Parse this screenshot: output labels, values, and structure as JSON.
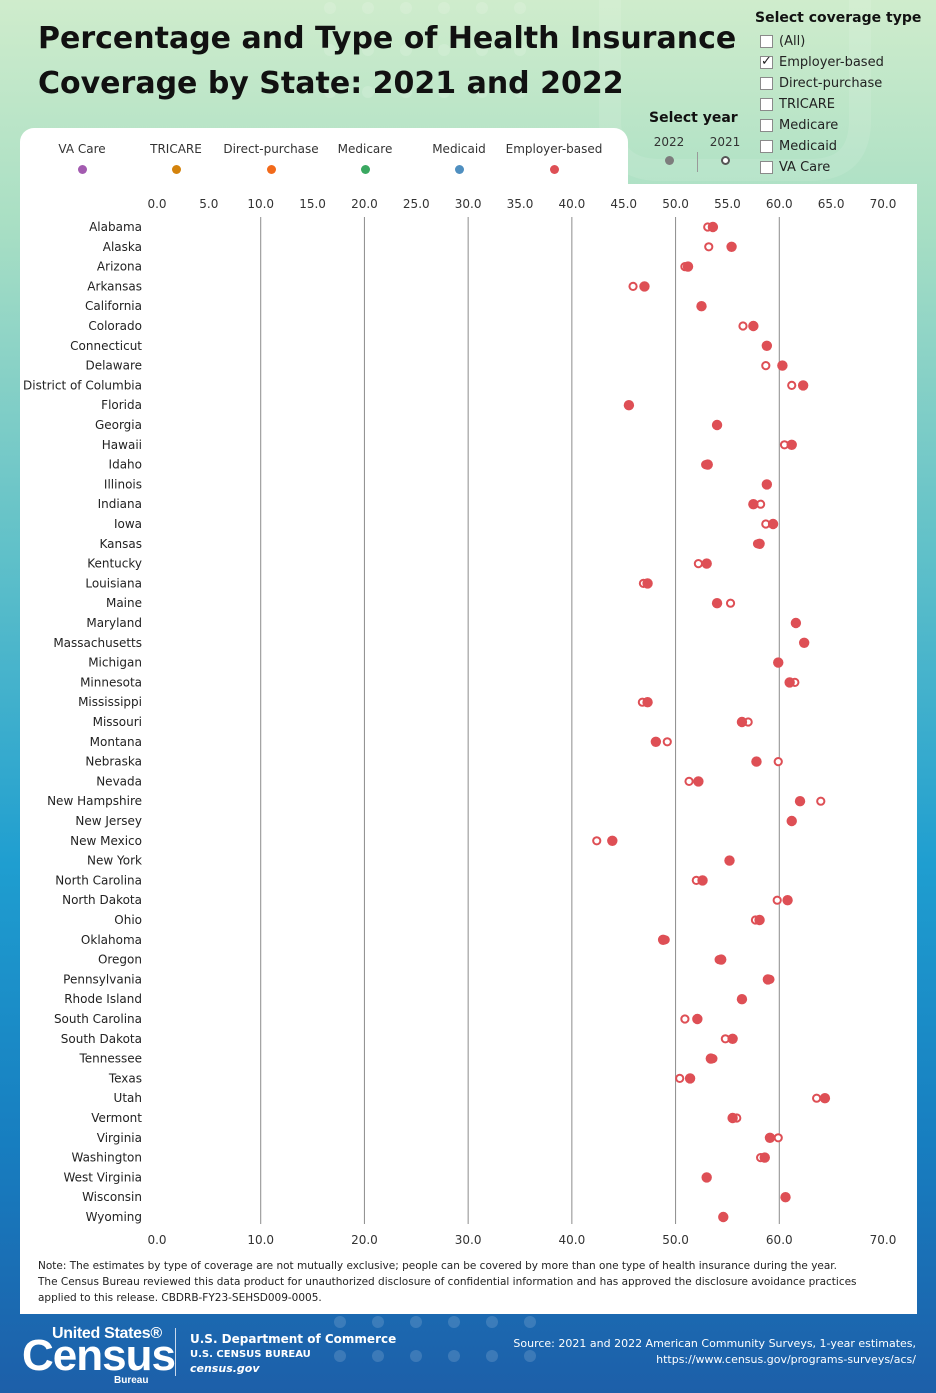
{
  "title": "Percentage and Type of Health Insurance Coverage by State: 2021 and 2022",
  "coverage_filter": {
    "header": "Select coverage type",
    "options": [
      {
        "label": "(All)",
        "checked": false
      },
      {
        "label": "Employer-based",
        "checked": true
      },
      {
        "label": "Direct-purchase",
        "checked": false
      },
      {
        "label": "TRICARE",
        "checked": false
      },
      {
        "label": "Medicare",
        "checked": false
      },
      {
        "label": "Medicaid",
        "checked": false
      },
      {
        "label": "VA Care",
        "checked": false
      }
    ]
  },
  "legend": [
    {
      "label": "VA Care",
      "color": "#a35bb0"
    },
    {
      "label": "TRICARE",
      "color": "#d4830c"
    },
    {
      "label": "Direct-purchase",
      "color": "#f26a1b"
    },
    {
      "label": "Medicare",
      "color": "#3aa861"
    },
    {
      "label": "Medicaid",
      "color": "#4f8fc0"
    },
    {
      "label": "Employer-based",
      "color": "#de4f55"
    }
  ],
  "year_filter": {
    "header": "Select year",
    "years": [
      {
        "label": "2022",
        "style": "filled"
      },
      {
        "label": "2021",
        "style": "hollow"
      }
    ]
  },
  "chart_data": {
    "type": "scatter",
    "coverage_type": "Employer-based",
    "xlim": [
      0,
      70
    ],
    "top_ticks": [
      "0.0",
      "5.0",
      "10.0",
      "15.0",
      "20.0",
      "25.0",
      "30.0",
      "35.0",
      "40.0",
      "45.0",
      "50.0",
      "55.0",
      "60.0",
      "65.0",
      "70.0"
    ],
    "bottom_ticks": [
      "0.0",
      "10.0",
      "20.0",
      "30.0",
      "40.0",
      "50.0",
      "60.0",
      "70.0"
    ],
    "gridlines": [
      10,
      20,
      30,
      40,
      50,
      60
    ],
    "series": [
      {
        "name": "2022",
        "color": "#de4f55",
        "marker": "filled"
      },
      {
        "name": "2021",
        "color": "#de4f55",
        "marker": "hollow"
      }
    ],
    "states": [
      {
        "state": "Alabama",
        "y2022": 53.6,
        "y2021": 53.1
      },
      {
        "state": "Alaska",
        "y2022": 55.4,
        "y2021": 53.2
      },
      {
        "state": "Arizona",
        "y2022": 51.2,
        "y2021": 50.9
      },
      {
        "state": "Arkansas",
        "y2022": 47.0,
        "y2021": 45.9
      },
      {
        "state": "California",
        "y2022": 52.5,
        "y2021": 52.5
      },
      {
        "state": "Colorado",
        "y2022": 57.5,
        "y2021": 56.5
      },
      {
        "state": "Connecticut",
        "y2022": 58.8,
        "y2021": 58.8
      },
      {
        "state": "Delaware",
        "y2022": 60.3,
        "y2021": 58.7
      },
      {
        "state": "District of Columbia",
        "y2022": 62.3,
        "y2021": 61.2
      },
      {
        "state": "Florida",
        "y2022": 45.5,
        "y2021": 45.5
      },
      {
        "state": "Georgia",
        "y2022": 54.0,
        "y2021": 54.0
      },
      {
        "state": "Hawaii",
        "y2022": 61.2,
        "y2021": 60.5
      },
      {
        "state": "Idaho",
        "y2022": 53.1,
        "y2021": 52.9
      },
      {
        "state": "Illinois",
        "y2022": 58.8,
        "y2021": 58.8
      },
      {
        "state": "Indiana",
        "y2022": 57.5,
        "y2021": 58.2
      },
      {
        "state": "Iowa",
        "y2022": 59.4,
        "y2021": 58.7
      },
      {
        "state": "Kansas",
        "y2022": 58.1,
        "y2021": 57.9
      },
      {
        "state": "Kentucky",
        "y2022": 53.0,
        "y2021": 52.2
      },
      {
        "state": "Louisiana",
        "y2022": 47.3,
        "y2021": 46.9
      },
      {
        "state": "Maine",
        "y2022": 54.0,
        "y2021": 55.3
      },
      {
        "state": "Maryland",
        "y2022": 61.6,
        "y2021": 61.6
      },
      {
        "state": "Massachusetts",
        "y2022": 62.4,
        "y2021": 62.4
      },
      {
        "state": "Michigan",
        "y2022": 59.9,
        "y2021": 59.9
      },
      {
        "state": "Minnesota",
        "y2022": 61.0,
        "y2021": 61.5
      },
      {
        "state": "Mississippi",
        "y2022": 47.3,
        "y2021": 46.8
      },
      {
        "state": "Missouri",
        "y2022": 56.4,
        "y2021": 57.0
      },
      {
        "state": "Montana",
        "y2022": 48.1,
        "y2021": 49.2
      },
      {
        "state": "Nebraska",
        "y2022": 57.8,
        "y2021": 59.9
      },
      {
        "state": "Nevada",
        "y2022": 52.2,
        "y2021": 51.3
      },
      {
        "state": "New Hampshire",
        "y2022": 62.0,
        "y2021": 64.0
      },
      {
        "state": "New Jersey",
        "y2022": 61.2,
        "y2021": 61.2
      },
      {
        "state": "New Mexico",
        "y2022": 43.9,
        "y2021": 42.4
      },
      {
        "state": "New York",
        "y2022": 55.2,
        "y2021": 55.2
      },
      {
        "state": "North Carolina",
        "y2022": 52.6,
        "y2021": 52.0
      },
      {
        "state": "North Dakota",
        "y2022": 60.8,
        "y2021": 59.8
      },
      {
        "state": "Ohio",
        "y2022": 58.1,
        "y2021": 57.7
      },
      {
        "state": "Oklahoma",
        "y2022": 48.8,
        "y2021": 49.0
      },
      {
        "state": "Oregon",
        "y2022": 54.4,
        "y2021": 54.2
      },
      {
        "state": "Pennsylvania",
        "y2022": 58.9,
        "y2021": 59.1
      },
      {
        "state": "Rhode Island",
        "y2022": 56.4,
        "y2021": 56.4
      },
      {
        "state": "South Carolina",
        "y2022": 52.1,
        "y2021": 50.9
      },
      {
        "state": "South Dakota",
        "y2022": 55.5,
        "y2021": 54.8
      },
      {
        "state": "Tennessee",
        "y2022": 53.4,
        "y2021": 53.6
      },
      {
        "state": "Texas",
        "y2022": 51.4,
        "y2021": 50.4
      },
      {
        "state": "Utah",
        "y2022": 64.4,
        "y2021": 63.6
      },
      {
        "state": "Vermont",
        "y2022": 55.5,
        "y2021": 55.9
      },
      {
        "state": "Virginia",
        "y2022": 59.1,
        "y2021": 59.9
      },
      {
        "state": "Washington",
        "y2022": 58.6,
        "y2021": 58.2
      },
      {
        "state": "West Virginia",
        "y2022": 53.0,
        "y2021": 53.0
      },
      {
        "state": "Wisconsin",
        "y2022": 60.6,
        "y2021": 60.6
      },
      {
        "state": "Wyoming",
        "y2022": 54.6,
        "y2021": 54.6
      }
    ]
  },
  "notes": {
    "line1": "Note: The estimates by type of coverage are not mutually exclusive; people can be covered by more than one type of health insurance during the year.",
    "line2": "The Census Bureau reviewed this data product for unauthorized disclosure of confidential information and has approved the disclosure avoidance practices applied to this release. CBDRB-FY23-SEHSD009-0005."
  },
  "footer": {
    "logo_top": "United States®",
    "logo_main": "Census",
    "logo_bottom": "Bureau",
    "dept": "U.S. Department of Commerce",
    "bureau": "U.S. CENSUS BUREAU",
    "site": "census.gov",
    "source_line1": "Source: 2021 and 2022 American Community Surveys, 1-year estimates,",
    "source_line2": "https://www.census.gov/programs-surveys/acs/"
  }
}
